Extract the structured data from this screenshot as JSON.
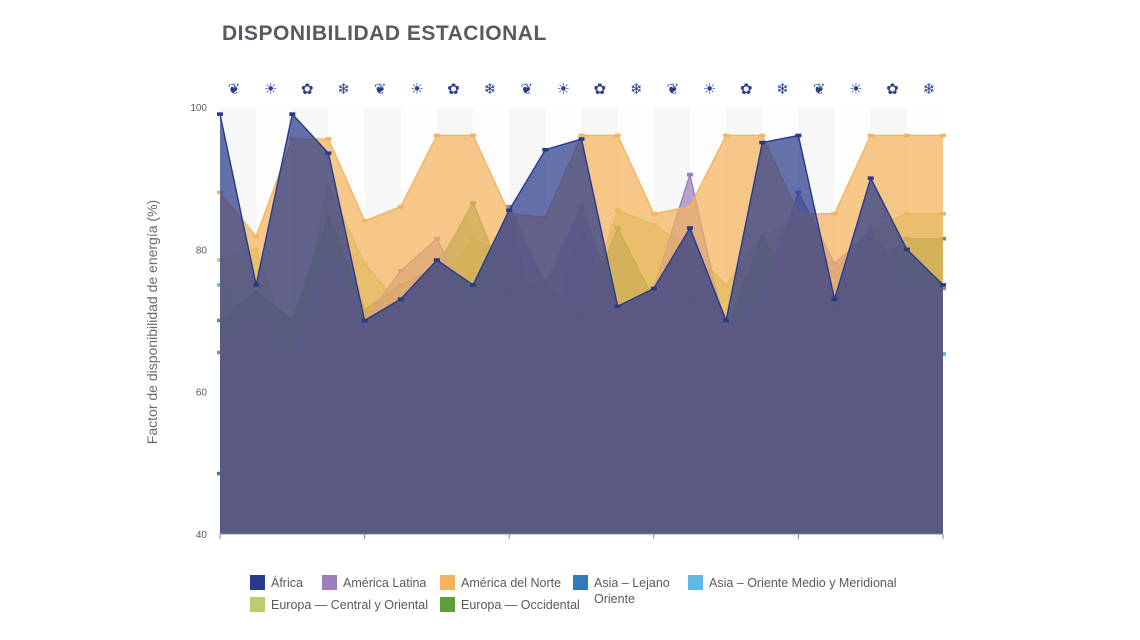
{
  "chart_data": {
    "type": "area",
    "title": "DISPONIBILIDAD ESTACIONAL",
    "ylabel": "Factor de disponibilidad de energía (%)",
    "ylim": [
      40,
      100
    ],
    "yticks": [
      "100",
      "80",
      "60",
      "40"
    ],
    "season_icons": [
      "leaf-icon",
      "sun-icon",
      "flower-icon",
      "snowflake-icon",
      "leaf-icon",
      "sun-icon",
      "flower-icon",
      "snowflake-icon",
      "leaf-icon",
      "sun-icon",
      "flower-icon",
      "snowflake-icon",
      "leaf-icon",
      "sun-icon",
      "flower-icon",
      "snowflake-icon",
      "leaf-icon",
      "sun-icon",
      "flower-icon",
      "snowflake-icon"
    ],
    "season_glyphs": [
      "❦",
      "☀",
      "✿",
      "❄",
      "❦",
      "☀",
      "✿",
      "❄",
      "❦",
      "☀",
      "✿",
      "❄",
      "❦",
      "☀",
      "✿",
      "❄",
      "❦",
      "☀",
      "✿",
      "❄"
    ],
    "grid": false,
    "legend_position": "bottom",
    "series": [
      {
        "name": "Asia – Lejano Oriente",
        "color": "#2e7bbf",
        "values": [
          48.5,
          52,
          54.5,
          50,
          60,
          50,
          58,
          52,
          60,
          63.5,
          60,
          61.5,
          63,
          65.3,
          63,
          65.3,
          65.3,
          65.3,
          66.5,
          65.3,
          65.3
        ]
      },
      {
        "name": "Asia – Oriente Medio y Meridional",
        "color": "#5fb8e6",
        "values": [
          75,
          68.5,
          65,
          75.5,
          71,
          63,
          66,
          74,
          85,
          65,
          83.5,
          68,
          69,
          75,
          70.5,
          72,
          71,
          74,
          81.5,
          65.3,
          65.3
        ]
      },
      {
        "name": "Europa — Central y Oriental",
        "color": "#b9cf6b",
        "values": [
          78.5,
          80,
          65,
          89,
          78,
          72,
          75,
          81.5,
          79,
          66,
          70,
          85.5,
          83.5,
          80,
          75,
          82,
          84,
          77,
          83,
          85,
          85
        ]
      },
      {
        "name": "Europa — Occidental",
        "color": "#5e9e3a",
        "values": [
          70,
          74,
          70,
          84.5,
          71.5,
          75,
          77.5,
          86.5,
          74,
          75.5,
          70,
          83,
          73,
          73,
          68,
          82,
          72,
          72,
          77,
          81.5,
          81.5
        ]
      },
      {
        "name": "América Latina",
        "color": "#9b7fbb",
        "values": [
          65.5,
          71,
          65,
          80,
          70,
          77,
          81.5,
          71,
          86,
          75,
          86,
          71,
          74.5,
          90.5,
          68,
          74,
          88,
          78,
          82.5,
          75,
          74.5
        ]
      },
      {
        "name": "América del Norte",
        "color": "#f5b35e",
        "values": [
          88,
          81.8,
          95.5,
          95.5,
          84,
          86,
          96,
          96,
          85,
          84.5,
          96,
          96,
          85,
          86,
          96,
          96,
          85,
          85,
          96,
          96,
          96
        ]
      },
      {
        "name": "África",
        "color": "#283a8a",
        "values": [
          99,
          75,
          99,
          93.5,
          70,
          73,
          78.5,
          75,
          85.5,
          94,
          95.5,
          72,
          74.5,
          83,
          70,
          95,
          96,
          73,
          90,
          80,
          75
        ]
      }
    ],
    "legend": [
      {
        "name": "África",
        "color": "#283a8a"
      },
      {
        "name": "América Latina",
        "color": "#9b7fbb"
      },
      {
        "name": "América del Norte",
        "color": "#f5b35e"
      },
      {
        "name": "Asia – Lejano Oriente",
        "color": "#2e7bbf"
      },
      {
        "name": "Asia – Oriente Medio y Meridional",
        "color": "#5fb8e6"
      },
      {
        "name": "Europa — Central y Oriental",
        "color": "#b9cf6b"
      },
      {
        "name": "Europa — Occidental",
        "color": "#5e9e3a"
      }
    ]
  }
}
